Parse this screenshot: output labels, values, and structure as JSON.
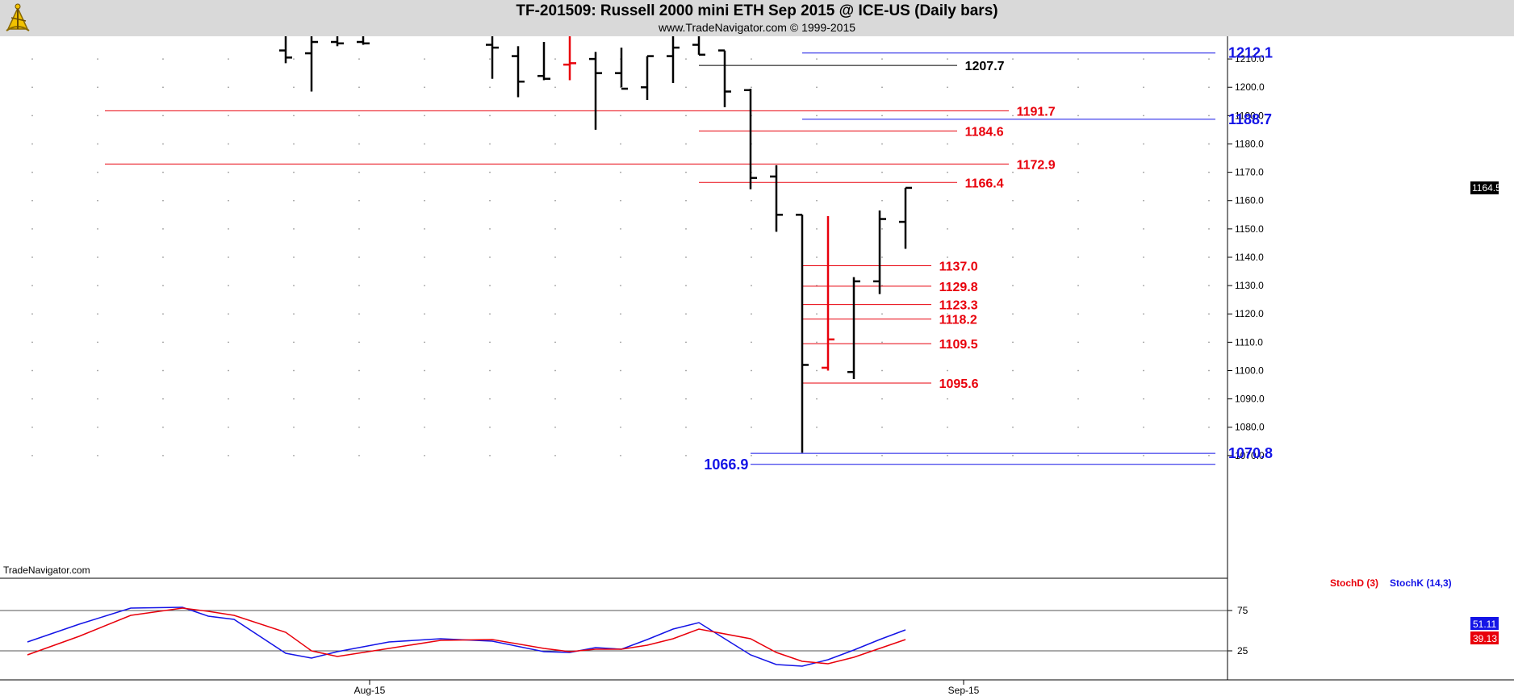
{
  "header": {
    "title": "TF-201509:  Russell 2000 mini ETH Sep 2015 @ ICE-US  (Daily bars)",
    "subtitle": "www.TradeNavigator.com © 1999-2015",
    "watermark": "TradeNavigator.com",
    "logo_icon": "sextant-icon"
  },
  "colors": {
    "background": "#ffffff",
    "header_bg": "#d9d9d9",
    "bars": "#000000",
    "bar_highlight": "#e8000b",
    "level_red": "#e8000b",
    "level_blue": "#1414e6",
    "level_black": "#000000",
    "stoch_k": "#1414e6",
    "stoch_d": "#e8000b"
  },
  "chart_data": [
    {
      "type": "ohlc",
      "name": "price",
      "ylim": [
        1060,
        1218
      ],
      "yticks": [
        1070,
        1080,
        1090,
        1100,
        1110,
        1120,
        1130,
        1140,
        1150,
        1160,
        1170,
        1180,
        1190,
        1200,
        1210
      ],
      "ytick_labels": [
        "1070.0",
        "1080.0",
        "1090.0",
        "1100.0",
        "1110.0",
        "1120.0",
        "1130.0",
        "1140.0",
        "1150.0",
        "1160.0",
        "1170.0",
        "1180.0",
        "1190.0",
        "1200.0",
        "1210.0"
      ],
      "xticks": [
        {
          "label": "Aug-15",
          "index": 13
        },
        {
          "label": "Sep-15",
          "index": 36
        }
      ],
      "last_price_label": "1164.5",
      "last_price": 1164.5,
      "bars": [
        {
          "i": 10,
          "o": 1213,
          "h": 1218,
          "l": 1208.5,
          "c": 1210.5,
          "color": "black"
        },
        {
          "i": 11,
          "o": 1212,
          "h": 1218,
          "l": 1198.5,
          "c": 1216,
          "color": "black"
        },
        {
          "i": 12,
          "o": 1216,
          "h": 1218,
          "l": 1214.5,
          "c": 1215.5,
          "color": "black"
        },
        {
          "i": 13,
          "o": 1216,
          "h": 1218,
          "l": 1215,
          "c": 1215.5,
          "color": "black"
        },
        {
          "i": 18,
          "o": 1215,
          "h": 1218,
          "l": 1203,
          "c": 1214,
          "color": "black"
        },
        {
          "i": 19,
          "o": 1211,
          "h": 1214.5,
          "l": 1196.5,
          "c": 1202,
          "color": "black"
        },
        {
          "i": 20,
          "o": 1204,
          "h": 1216,
          "l": 1202.5,
          "c": 1203,
          "color": "black"
        },
        {
          "i": 21,
          "o": 1208,
          "h": 1218,
          "l": 1202.5,
          "c": 1208.5,
          "color": "red"
        },
        {
          "i": 22,
          "o": 1210,
          "h": 1212.5,
          "l": 1185,
          "c": 1205,
          "color": "black"
        },
        {
          "i": 23,
          "o": 1205,
          "h": 1214,
          "l": 1200,
          "c": 1199.5,
          "color": "black"
        },
        {
          "i": 24,
          "o": 1200,
          "h": 1211,
          "l": 1195.5,
          "c": 1211,
          "color": "black"
        },
        {
          "i": 25,
          "o": 1211,
          "h": 1218,
          "l": 1201.5,
          "c": 1214,
          "color": "black"
        },
        {
          "i": 26,
          "o": 1215,
          "h": 1218,
          "l": 1211.5,
          "c": 1211.5,
          "color": "black"
        },
        {
          "i": 27,
          "o": 1213,
          "h": 1213,
          "l": 1193,
          "c": 1198.5,
          "color": "black"
        },
        {
          "i": 28,
          "o": 1199,
          "h": 1199.5,
          "l": 1164,
          "c": 1168,
          "color": "black"
        },
        {
          "i": 29,
          "o": 1168.5,
          "h": 1172.5,
          "l": 1149,
          "c": 1155,
          "color": "black"
        },
        {
          "i": 30,
          "o": 1155,
          "h": 1155,
          "l": 1071,
          "c": 1102,
          "color": "black"
        },
        {
          "i": 31,
          "o": 1101,
          "h": 1154.5,
          "l": 1100,
          "c": 1111,
          "color": "red"
        },
        {
          "i": 32,
          "o": 1099.5,
          "h": 1133,
          "l": 1097,
          "c": 1131.5,
          "color": "black"
        },
        {
          "i": 33,
          "o": 1131.5,
          "h": 1156.5,
          "l": 1127,
          "c": 1153.5,
          "color": "black"
        },
        {
          "i": 34,
          "o": 1152.5,
          "h": 1164.5,
          "l": 1143,
          "c": 1164.5,
          "color": "black"
        }
      ]
    },
    {
      "type": "line",
      "name": "stochastic",
      "ylim": [
        0,
        100
      ],
      "yticks": [
        25,
        75
      ],
      "ytick_labels": [
        "25",
        "75"
      ],
      "legend": [
        {
          "label": "StochD (3)",
          "color": "#e8000b"
        },
        {
          "label": "StochK (14,3)",
          "color": "#1414e6"
        }
      ],
      "last_values": {
        "k": "51.11",
        "d": "39.13"
      },
      "series": [
        {
          "name": "StochK (14,3)",
          "color": "#1414e6",
          "x": [
            0,
            2,
            4,
            6,
            7,
            8,
            10,
            11,
            12,
            14,
            16,
            18,
            20,
            21,
            22,
            23,
            24,
            25,
            26,
            28,
            29,
            30,
            31,
            32,
            33,
            34
          ],
          "values": [
            36,
            58,
            78,
            79,
            68,
            64,
            22,
            16,
            24,
            36,
            40,
            37,
            24,
            23,
            29,
            27,
            39,
            52,
            60,
            20,
            8,
            6,
            14,
            26,
            39,
            51
          ]
        },
        {
          "name": "StochD (3)",
          "color": "#e8000b",
          "x": [
            0,
            2,
            4,
            6,
            7,
            8,
            10,
            11,
            12,
            14,
            16,
            18,
            20,
            21,
            22,
            23,
            24,
            25,
            26,
            28,
            29,
            30,
            31,
            32,
            33,
            34
          ],
          "values": [
            20,
            43,
            69,
            78,
            74,
            69,
            48,
            25,
            18,
            28,
            38,
            39,
            28,
            24,
            27,
            27,
            32,
            40,
            52,
            40,
            23,
            12,
            9,
            17,
            28,
            39
          ]
        }
      ]
    }
  ],
  "levels": [
    {
      "value": 1212.1,
      "label": "1212.1",
      "color": "blue",
      "from": 30,
      "to": 46,
      "text_at": 46.5
    },
    {
      "value": 1207.7,
      "label": "1207.7",
      "color": "black",
      "from": 26,
      "to": 36,
      "text_at": 36.3
    },
    {
      "value": 1191.7,
      "label": "1191.7",
      "color": "red",
      "from": 3,
      "to": 38,
      "text_at": 38.3
    },
    {
      "value": 1188.7,
      "label": "1188.7",
      "color": "blue",
      "from": 30,
      "to": 46,
      "text_at": 46.5
    },
    {
      "value": 1184.6,
      "label": "1184.6",
      "color": "red",
      "from": 26,
      "to": 36,
      "text_at": 36.3
    },
    {
      "value": 1172.9,
      "label": "1172.9",
      "color": "red",
      "from": 3,
      "to": 38,
      "text_at": 38.3
    },
    {
      "value": 1166.4,
      "label": "1166.4",
      "color": "red",
      "from": 26,
      "to": 36,
      "text_at": 36.3
    },
    {
      "value": 1137.0,
      "label": "1137.0",
      "color": "red",
      "from": 30,
      "to": 35,
      "text_at": 35.3
    },
    {
      "value": 1129.8,
      "label": "1129.8",
      "color": "red",
      "from": 30,
      "to": 35,
      "text_at": 35.3
    },
    {
      "value": 1123.3,
      "label": "1123.3",
      "color": "red",
      "from": 30,
      "to": 35,
      "text_at": 35.3
    },
    {
      "value": 1118.2,
      "label": "1118.2",
      "color": "red",
      "from": 30,
      "to": 35,
      "text_at": 35.3
    },
    {
      "value": 1109.5,
      "label": "1109.5",
      "color": "red",
      "from": 30,
      "to": 35,
      "text_at": 35.3
    },
    {
      "value": 1095.6,
      "label": "1095.6",
      "color": "red",
      "from": 30,
      "to": 35,
      "text_at": 35.3
    },
    {
      "value": 1070.8,
      "label": "1070.8",
      "color": "blue",
      "from": 28,
      "to": 46,
      "text_at": 46.5
    },
    {
      "value": 1066.9,
      "label": "1066.9",
      "color": "blue",
      "from": 28,
      "to": 46,
      "text_at": 26.2
    }
  ]
}
